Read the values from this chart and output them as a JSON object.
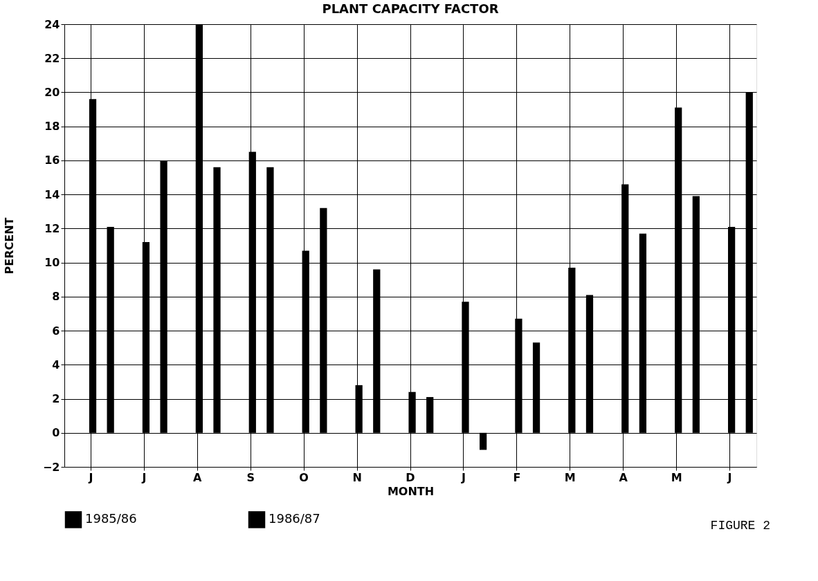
{
  "chart_data": {
    "type": "bar",
    "title": "PLANT CAPACITY FACTOR",
    "xlabel": "MONTH",
    "ylabel": "PERCENT",
    "categories": [
      "J",
      "J",
      "A",
      "S",
      "O",
      "N",
      "D",
      "J",
      "F",
      "M",
      "A",
      "M",
      "J"
    ],
    "series": [
      {
        "name": "1985/86",
        "color": "#000000",
        "values": [
          19.6,
          11.2,
          24.0,
          16.5,
          10.7,
          2.8,
          2.4,
          7.7,
          6.7,
          9.7,
          14.6,
          19.1,
          12.1
        ]
      },
      {
        "name": "1986/87",
        "color": "#000000",
        "values": [
          12.1,
          16.0,
          15.6,
          15.6,
          13.2,
          9.6,
          2.1,
          -1.0,
          5.3,
          8.1,
          11.7,
          13.9,
          20.0
        ]
      }
    ],
    "ylim": [
      -2,
      24
    ],
    "yticks": [
      -2,
      0,
      2,
      4,
      6,
      8,
      10,
      12,
      14,
      16,
      18,
      20,
      22,
      24
    ],
    "grid": true,
    "legend": "bottom",
    "annotations": [
      "FIGURE 2"
    ]
  }
}
